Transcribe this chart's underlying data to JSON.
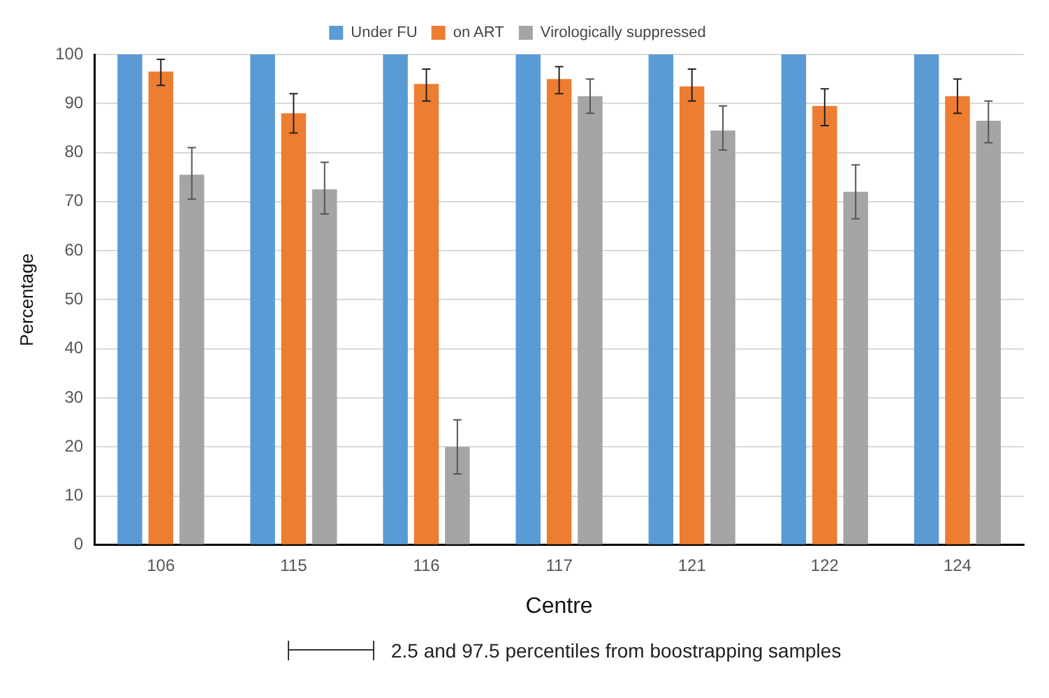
{
  "chart_data": {
    "type": "bar",
    "xlabel": "Centre",
    "ylabel": "Percentage",
    "categories": [
      "106",
      "115",
      "116",
      "117",
      "121",
      "122",
      "124"
    ],
    "series": [
      {
        "name": "Under FU",
        "color": "#5b9bd5",
        "values": [
          100,
          100,
          100,
          100,
          100,
          100,
          100
        ]
      },
      {
        "name": "on ART",
        "color": "#ed7d31",
        "values": [
          96.5,
          88,
          94,
          95,
          93.5,
          89.5,
          91.5
        ],
        "errors": [
          [
            93.7,
            99
          ],
          [
            84,
            92
          ],
          [
            90.5,
            97
          ],
          [
            92,
            97.5
          ],
          [
            90.5,
            97
          ],
          [
            85.5,
            93
          ],
          [
            88,
            95
          ]
        ]
      },
      {
        "name": "Virologically suppressed",
        "color": "#a5a5a5",
        "values": [
          75.5,
          72.5,
          20,
          91.5,
          84.5,
          72,
          86.5
        ],
        "errors": [
          [
            70.5,
            81
          ],
          [
            67.5,
            78
          ],
          [
            14.5,
            25.5
          ],
          [
            88,
            95
          ],
          [
            80.5,
            89.5
          ],
          [
            66.5,
            77.5
          ],
          [
            82,
            90.5
          ]
        ]
      }
    ],
    "ylim": [
      0,
      100
    ],
    "yticks": [
      0,
      10,
      20,
      30,
      40,
      50,
      60,
      70,
      80,
      90,
      100
    ],
    "grid": "y",
    "legend": "top",
    "annotations": [
      "2.5 and 97.5 percentiles from boostrapping samples"
    ]
  }
}
